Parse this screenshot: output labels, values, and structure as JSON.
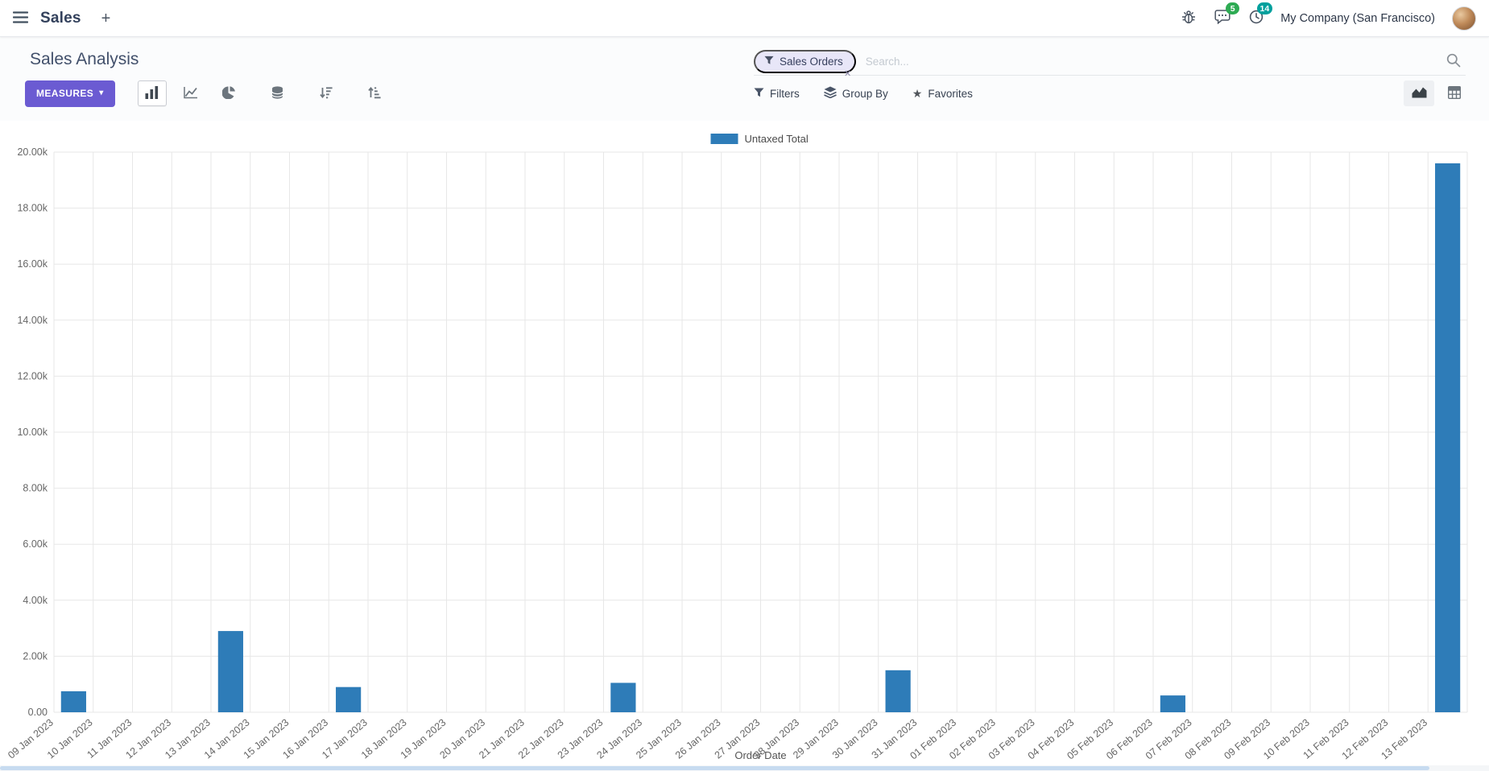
{
  "navbar": {
    "app_name": "Sales",
    "company": "My Company (San Francisco)",
    "badges": {
      "messages": "5",
      "activities": "14"
    }
  },
  "control_panel": {
    "title": "Sales Analysis",
    "measures_label": "MEASURES",
    "filters_label": "Filters",
    "group_by_label": "Group By",
    "favorites_label": "Favorites",
    "search": {
      "facet_label": "Sales Orders",
      "placeholder": "Search..."
    }
  },
  "icons": {
    "plus": "+",
    "caret_down": "▾",
    "close": "✕",
    "star": "★"
  },
  "colors": {
    "accent": "#6b5bd2",
    "bar": "#2e7cb8",
    "badge_green": "#2eab53",
    "badge_teal": "#00a09d"
  },
  "chart_data": {
    "type": "bar",
    "title": "",
    "xlabel": "Order Date",
    "ylabel": "",
    "ylim": [
      0,
      20000
    ],
    "ytick_labels": [
      "0.00",
      "2.00k",
      "4.00k",
      "6.00k",
      "8.00k",
      "10.00k",
      "12.00k",
      "14.00k",
      "16.00k",
      "18.00k",
      "20.00k"
    ],
    "grid": true,
    "legend_position": "top",
    "categories": [
      "09 Jan 2023",
      "10 Jan 2023",
      "11 Jan 2023",
      "12 Jan 2023",
      "13 Jan 2023",
      "14 Jan 2023",
      "15 Jan 2023",
      "16 Jan 2023",
      "17 Jan 2023",
      "18 Jan 2023",
      "19 Jan 2023",
      "20 Jan 2023",
      "21 Jan 2023",
      "22 Jan 2023",
      "23 Jan 2023",
      "24 Jan 2023",
      "25 Jan 2023",
      "26 Jan 2023",
      "27 Jan 2023",
      "28 Jan 2023",
      "29 Jan 2023",
      "30 Jan 2023",
      "31 Jan 2023",
      "01 Feb 2023",
      "02 Feb 2023",
      "03 Feb 2023",
      "04 Feb 2023",
      "05 Feb 2023",
      "06 Feb 2023",
      "07 Feb 2023",
      "08 Feb 2023",
      "09 Feb 2023",
      "10 Feb 2023",
      "11 Feb 2023",
      "12 Feb 2023",
      "13 Feb 2023"
    ],
    "series": [
      {
        "name": "Untaxed Total",
        "color": "#2e7cb8",
        "values": [
          750,
          0,
          0,
          0,
          2900,
          0,
          0,
          900,
          0,
          0,
          0,
          0,
          0,
          0,
          1050,
          0,
          0,
          0,
          0,
          0,
          0,
          1500,
          0,
          0,
          0,
          0,
          0,
          0,
          600,
          0,
          0,
          0,
          0,
          0,
          0,
          19600
        ]
      }
    ]
  }
}
